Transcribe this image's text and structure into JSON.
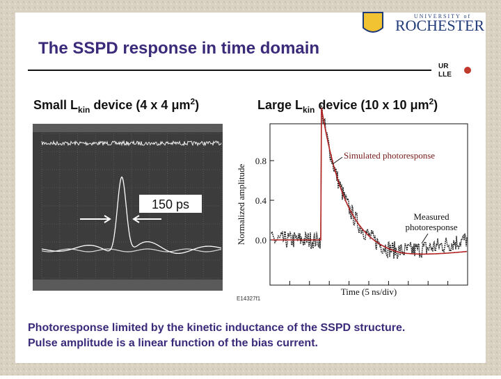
{
  "header": {
    "title": "The SSPD response in time domain",
    "logo_top": "UNIVERSITY of",
    "logo_main": "ROCHESTER",
    "lab_logo_top": "UR",
    "lab_logo_bottom": "LLE"
  },
  "left_panel": {
    "heading": {
      "lead": "Small L",
      "sub": "kin",
      "tail": " device (4 x 4 μm",
      "sup": "2",
      "end": ")"
    },
    "pulse_label": "150 ps"
  },
  "right_panel": {
    "heading": {
      "lead": "Large L",
      "sub": "kin",
      "tail": " device (10 x 10 μm",
      "sup": "2",
      "end": ")"
    },
    "y_ticks": [
      "0.8",
      "0.4",
      "0.0"
    ],
    "y_label": "Normalized amplitude",
    "x_label": "Time (5 ns/div)",
    "annotation_simulated": "Simulated photoresponse",
    "annotation_measured": [
      "Measured",
      "photoresponse"
    ],
    "figure_id": "E14327f1"
  },
  "footer": [
    "Photoresponse limited by the kinetic inductance of the SSPD structure.",
    "Pulse amplitude is a linear function of the bias current."
  ]
}
